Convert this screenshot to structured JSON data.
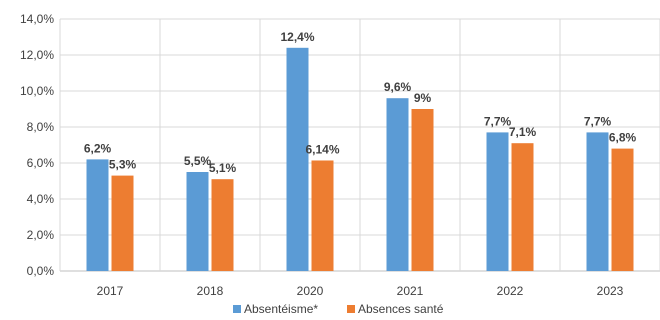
{
  "chart_data": {
    "type": "bar",
    "categories": [
      "2017",
      "2018",
      "2020",
      "2021",
      "2022",
      "2023"
    ],
    "series": [
      {
        "name": "Absentéisme*",
        "color": "#5b9bd5",
        "values": [
          6.2,
          5.5,
          12.4,
          9.6,
          7.7,
          7.7
        ],
        "labels": [
          "6,2%",
          "5,5%",
          "12,4%",
          "9,6%",
          "7,7%",
          "7,7%"
        ]
      },
      {
        "name": "Absences santé",
        "color": "#ed7d31",
        "values": [
          5.3,
          5.1,
          6.14,
          9.0,
          7.1,
          6.8
        ],
        "labels": [
          "5,3%",
          "5,1%",
          "6,14%",
          "9%",
          "7,1%",
          "6,8%"
        ]
      }
    ],
    "ylim": [
      0,
      14
    ],
    "yticks": [
      "0,0%",
      "2,0%",
      "4,0%",
      "6,0%",
      "8,0%",
      "10,0%",
      "12,0%",
      "14,0%"
    ],
    "grid": true,
    "legend": "bottom"
  }
}
